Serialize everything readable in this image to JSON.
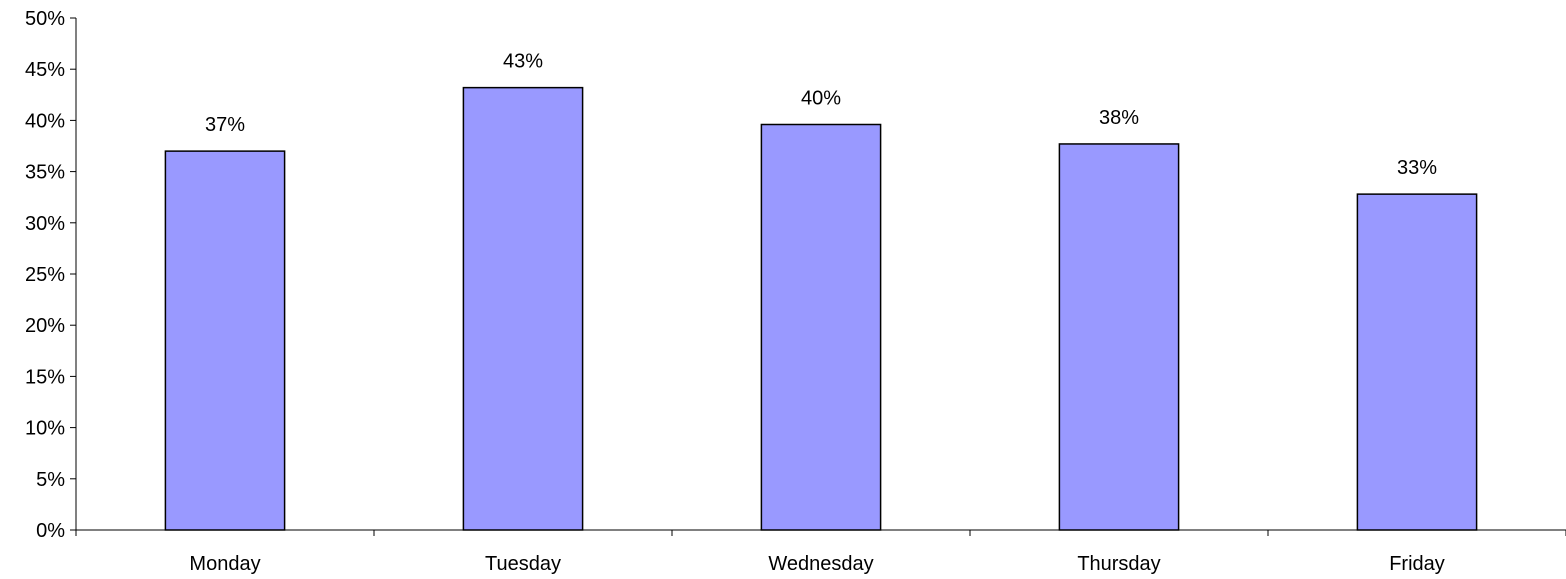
{
  "chart_data": {
    "type": "bar",
    "categories": [
      "Monday",
      "Tuesday",
      "Wednesday",
      "Thursday",
      "Friday"
    ],
    "values": [
      37,
      43.2,
      39.6,
      37.7,
      32.8
    ],
    "value_labels": [
      "37%",
      "43%",
      "40%",
      "38%",
      "33%"
    ],
    "ylim": [
      0,
      50
    ],
    "y_ticks": [
      0,
      5,
      10,
      15,
      20,
      25,
      30,
      35,
      40,
      45,
      50
    ],
    "y_tick_labels": [
      "0%",
      "5%",
      "10%",
      "15%",
      "20%",
      "25%",
      "30%",
      "35%",
      "40%",
      "45%",
      "50%"
    ],
    "title": "",
    "xlabel": "",
    "ylabel": "",
    "grid": false,
    "legend": "none",
    "bar_color": "#9999ff",
    "bar_edge_color": "#000000"
  }
}
